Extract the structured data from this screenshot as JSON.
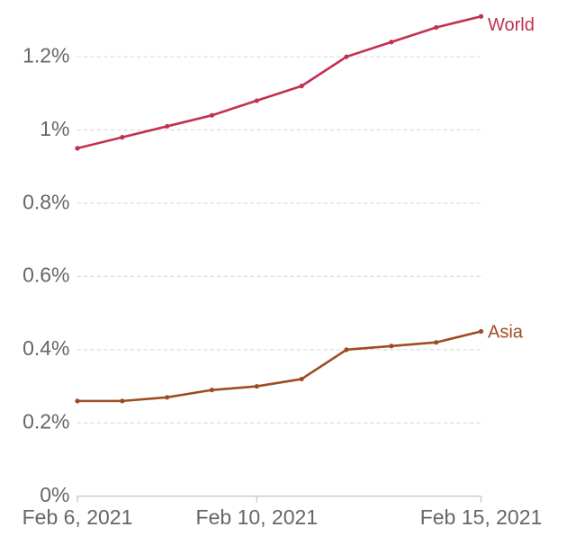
{
  "chart_data": {
    "type": "line",
    "x": [
      "Feb 6, 2021",
      "Feb 7, 2021",
      "Feb 8, 2021",
      "Feb 9, 2021",
      "Feb 10, 2021",
      "Feb 11, 2021",
      "Feb 12, 2021",
      "Feb 13, 2021",
      "Feb 14, 2021",
      "Feb 15, 2021"
    ],
    "series": [
      {
        "name": "World",
        "color": "#c0314f",
        "values": [
          0.95,
          0.98,
          1.01,
          1.04,
          1.08,
          1.12,
          1.2,
          1.24,
          1.28,
          1.31
        ]
      },
      {
        "name": "Asia",
        "color": "#9d4c20",
        "values": [
          0.26,
          0.26,
          0.27,
          0.29,
          0.3,
          0.32,
          0.4,
          0.41,
          0.42,
          0.45
        ]
      }
    ],
    "title": "",
    "xlabel": "",
    "ylabel": "",
    "ylim": [
      0,
      1.35
    ],
    "yticks": [
      {
        "value": 0.0,
        "label": "0%"
      },
      {
        "value": 0.2,
        "label": "0.2%"
      },
      {
        "value": 0.4,
        "label": "0.4%"
      },
      {
        "value": 0.6,
        "label": "0.6%"
      },
      {
        "value": 0.8,
        "label": "0.8%"
      },
      {
        "value": 1.0,
        "label": "1%"
      },
      {
        "value": 1.2,
        "label": "1.2%"
      }
    ],
    "xticks": [
      "Feb 6, 2021",
      "Feb 10, 2021",
      "Feb 15, 2021"
    ],
    "grid": "horizontal-dashed",
    "legend_position": "line-end-labels"
  },
  "colors": {
    "background": "#ffffff",
    "gridline": "#dddddd",
    "axis_line": "#cccccc",
    "tick_label": "#666666"
  }
}
